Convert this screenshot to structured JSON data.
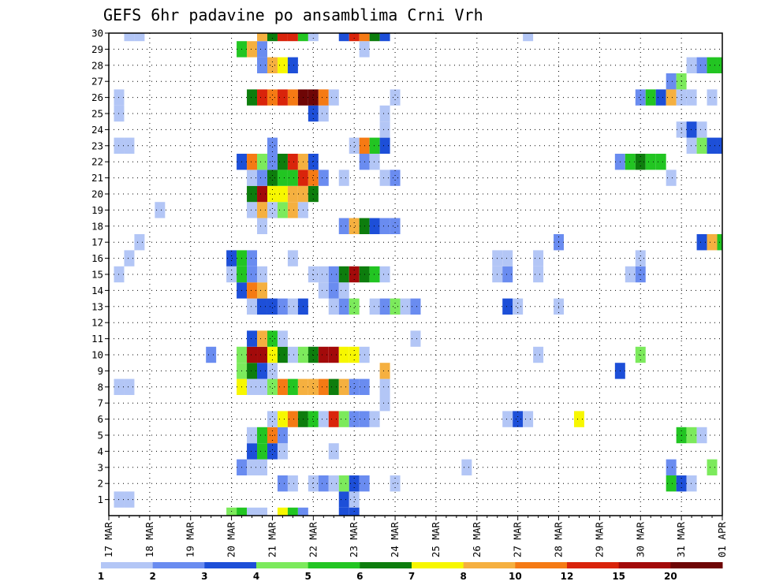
{
  "chart_data": {
    "type": "heatmap",
    "title": "GEFS 6hr padavine po ansamblima Crni Vrh",
    "xlabel": "",
    "ylabel": "",
    "x_tick_labels": [
      "17 MAR",
      "18 MAR",
      "19 MAR",
      "20 MAR",
      "21 MAR",
      "22 MAR",
      "23 MAR",
      "24 MAR",
      "25 MAR",
      "26 MAR",
      "27 MAR",
      "28 MAR",
      "29 MAR",
      "30 MAR",
      "31 MAR",
      "01 APR"
    ],
    "x_range_steps": [
      0,
      60
    ],
    "steps_per_day": 4,
    "y_tick_labels": [
      "1",
      "2",
      "3",
      "4",
      "5",
      "6",
      "7",
      "8",
      "9",
      "10",
      "11",
      "12",
      "13",
      "14",
      "15",
      "16",
      "17",
      "18",
      "19",
      "20",
      "21",
      "22",
      "23",
      "24",
      "25",
      "26",
      "27",
      "28",
      "29",
      "30"
    ],
    "y_range": [
      0,
      30
    ],
    "grid": "dotted",
    "colorbar": {
      "labels": [
        "1",
        "2",
        "3",
        "4",
        "5",
        "6",
        "7",
        "8",
        "10",
        "12",
        "15",
        "20"
      ],
      "colors": [
        "#b3c6f6",
        "#6a8cf0",
        "#1d4fd8",
        "#7cea5c",
        "#22c522",
        "#0d7d0d",
        "#f7f700",
        "#f5b040",
        "#f57a14",
        "#d9240b",
        "#a30a0a",
        "#6e0606"
      ]
    },
    "series_note": "each cell: member y (1-30), 6-hour step x from 17 MAR 00Z, color class c (1..12 = colorbar bins)",
    "cells": [
      {
        "x": 1,
        "y": 1,
        "c": 1
      },
      {
        "x": 2,
        "y": 1,
        "c": 1
      },
      {
        "x": 23,
        "y": 1,
        "c": 3
      },
      {
        "x": 24,
        "y": 1,
        "c": 1
      },
      {
        "x": 17,
        "y": 2,
        "c": 2
      },
      {
        "x": 18,
        "y": 2,
        "c": 1
      },
      {
        "x": 20,
        "y": 2,
        "c": 1
      },
      {
        "x": 21,
        "y": 2,
        "c": 2
      },
      {
        "x": 22,
        "y": 2,
        "c": 1
      },
      {
        "x": 23,
        "y": 2,
        "c": 4
      },
      {
        "x": 24,
        "y": 2,
        "c": 3
      },
      {
        "x": 25,
        "y": 2,
        "c": 2
      },
      {
        "x": 28,
        "y": 2,
        "c": 1
      },
      {
        "x": 55,
        "y": 2,
        "c": 5
      },
      {
        "x": 56,
        "y": 2,
        "c": 3
      },
      {
        "x": 57,
        "y": 2,
        "c": 1
      },
      {
        "x": 13,
        "y": 3,
        "c": 2
      },
      {
        "x": 14,
        "y": 3,
        "c": 1
      },
      {
        "x": 15,
        "y": 3,
        "c": 1
      },
      {
        "x": 35,
        "y": 3,
        "c": 1
      },
      {
        "x": 55,
        "y": 3,
        "c": 2
      },
      {
        "x": 59,
        "y": 3,
        "c": 4
      },
      {
        "x": 14,
        "y": 4,
        "c": 3
      },
      {
        "x": 15,
        "y": 4,
        "c": 5
      },
      {
        "x": 16,
        "y": 4,
        "c": 3
      },
      {
        "x": 17,
        "y": 4,
        "c": 1
      },
      {
        "x": 22,
        "y": 4,
        "c": 1
      },
      {
        "x": 14,
        "y": 5,
        "c": 1
      },
      {
        "x": 15,
        "y": 5,
        "c": 5
      },
      {
        "x": 16,
        "y": 5,
        "c": 9
      },
      {
        "x": 17,
        "y": 5,
        "c": 2
      },
      {
        "x": 56,
        "y": 5,
        "c": 5
      },
      {
        "x": 57,
        "y": 5,
        "c": 4
      },
      {
        "x": 58,
        "y": 5,
        "c": 1
      },
      {
        "x": 16,
        "y": 6,
        "c": 1
      },
      {
        "x": 17,
        "y": 6,
        "c": 7
      },
      {
        "x": 18,
        "y": 6,
        "c": 9
      },
      {
        "x": 19,
        "y": 6,
        "c": 6
      },
      {
        "x": 20,
        "y": 6,
        "c": 5
      },
      {
        "x": 21,
        "y": 6,
        "c": 1
      },
      {
        "x": 22,
        "y": 6,
        "c": 10
      },
      {
        "x": 23,
        "y": 6,
        "c": 4
      },
      {
        "x": 24,
        "y": 6,
        "c": 2
      },
      {
        "x": 25,
        "y": 6,
        "c": 2
      },
      {
        "x": 26,
        "y": 6,
        "c": 1
      },
      {
        "x": 39,
        "y": 6,
        "c": 1
      },
      {
        "x": 40,
        "y": 6,
        "c": 3
      },
      {
        "x": 41,
        "y": 6,
        "c": 1
      },
      {
        "x": 46,
        "y": 6,
        "c": 7
      },
      {
        "x": 27,
        "y": 7,
        "c": 1
      },
      {
        "x": 1,
        "y": 8,
        "c": 1
      },
      {
        "x": 2,
        "y": 8,
        "c": 1
      },
      {
        "x": 13,
        "y": 8,
        "c": 7
      },
      {
        "x": 14,
        "y": 8,
        "c": 1
      },
      {
        "x": 15,
        "y": 8,
        "c": 1
      },
      {
        "x": 16,
        "y": 8,
        "c": 4
      },
      {
        "x": 17,
        "y": 8,
        "c": 9
      },
      {
        "x": 18,
        "y": 8,
        "c": 5
      },
      {
        "x": 19,
        "y": 8,
        "c": 8
      },
      {
        "x": 20,
        "y": 8,
        "c": 8
      },
      {
        "x": 21,
        "y": 8,
        "c": 9
      },
      {
        "x": 22,
        "y": 8,
        "c": 6
      },
      {
        "x": 23,
        "y": 8,
        "c": 8
      },
      {
        "x": 24,
        "y": 8,
        "c": 2
      },
      {
        "x": 25,
        "y": 8,
        "c": 2
      },
      {
        "x": 27,
        "y": 8,
        "c": 1
      },
      {
        "x": 13,
        "y": 9,
        "c": 4
      },
      {
        "x": 14,
        "y": 9,
        "c": 6
      },
      {
        "x": 15,
        "y": 9,
        "c": 3
      },
      {
        "x": 16,
        "y": 9,
        "c": 1
      },
      {
        "x": 27,
        "y": 9,
        "c": 8
      },
      {
        "x": 50,
        "y": 9,
        "c": 3
      },
      {
        "x": 10,
        "y": 10,
        "c": 2
      },
      {
        "x": 13,
        "y": 10,
        "c": 4
      },
      {
        "x": 14,
        "y": 10,
        "c": 11
      },
      {
        "x": 15,
        "y": 10,
        "c": 11
      },
      {
        "x": 16,
        "y": 10,
        "c": 7
      },
      {
        "x": 17,
        "y": 10,
        "c": 6
      },
      {
        "x": 18,
        "y": 10,
        "c": 1
      },
      {
        "x": 19,
        "y": 10,
        "c": 4
      },
      {
        "x": 20,
        "y": 10,
        "c": 6
      },
      {
        "x": 21,
        "y": 10,
        "c": 11
      },
      {
        "x": 22,
        "y": 10,
        "c": 11
      },
      {
        "x": 23,
        "y": 10,
        "c": 7
      },
      {
        "x": 24,
        "y": 10,
        "c": 7
      },
      {
        "x": 25,
        "y": 10,
        "c": 1
      },
      {
        "x": 42,
        "y": 10,
        "c": 1
      },
      {
        "x": 52,
        "y": 10,
        "c": 4
      },
      {
        "x": 14,
        "y": 11,
        "c": 3
      },
      {
        "x": 15,
        "y": 11,
        "c": 8
      },
      {
        "x": 16,
        "y": 11,
        "c": 5
      },
      {
        "x": 17,
        "y": 11,
        "c": 1
      },
      {
        "x": 30,
        "y": 11,
        "c": 1
      },
      {
        "x": 14,
        "y": 13,
        "c": 1
      },
      {
        "x": 15,
        "y": 13,
        "c": 3
      },
      {
        "x": 16,
        "y": 13,
        "c": 3
      },
      {
        "x": 17,
        "y": 13,
        "c": 2
      },
      {
        "x": 18,
        "y": 13,
        "c": 1
      },
      {
        "x": 19,
        "y": 13,
        "c": 3
      },
      {
        "x": 22,
        "y": 13,
        "c": 1
      },
      {
        "x": 23,
        "y": 13,
        "c": 2
      },
      {
        "x": 24,
        "y": 13,
        "c": 4
      },
      {
        "x": 26,
        "y": 13,
        "c": 1
      },
      {
        "x": 27,
        "y": 13,
        "c": 2
      },
      {
        "x": 28,
        "y": 13,
        "c": 4
      },
      {
        "x": 29,
        "y": 13,
        "c": 1
      },
      {
        "x": 30,
        "y": 13,
        "c": 2
      },
      {
        "x": 39,
        "y": 13,
        "c": 3
      },
      {
        "x": 40,
        "y": 13,
        "c": 1
      },
      {
        "x": 44,
        "y": 13,
        "c": 1
      },
      {
        "x": 13,
        "y": 14,
        "c": 3
      },
      {
        "x": 14,
        "y": 14,
        "c": 9
      },
      {
        "x": 15,
        "y": 14,
        "c": 8
      },
      {
        "x": 21,
        "y": 14,
        "c": 1
      },
      {
        "x": 22,
        "y": 14,
        "c": 2
      },
      {
        "x": 23,
        "y": 14,
        "c": 1
      },
      {
        "x": 1,
        "y": 15,
        "c": 1
      },
      {
        "x": 12,
        "y": 15,
        "c": 1
      },
      {
        "x": 13,
        "y": 15,
        "c": 5
      },
      {
        "x": 14,
        "y": 15,
        "c": 2
      },
      {
        "x": 15,
        "y": 15,
        "c": 1
      },
      {
        "x": 20,
        "y": 15,
        "c": 1
      },
      {
        "x": 21,
        "y": 15,
        "c": 1
      },
      {
        "x": 22,
        "y": 15,
        "c": 2
      },
      {
        "x": 23,
        "y": 15,
        "c": 6
      },
      {
        "x": 24,
        "y": 15,
        "c": 11
      },
      {
        "x": 25,
        "y": 15,
        "c": 6
      },
      {
        "x": 26,
        "y": 15,
        "c": 5
      },
      {
        "x": 27,
        "y": 15,
        "c": 1
      },
      {
        "x": 38,
        "y": 15,
        "c": 1
      },
      {
        "x": 39,
        "y": 15,
        "c": 2
      },
      {
        "x": 42,
        "y": 15,
        "c": 1
      },
      {
        "x": 51,
        "y": 15,
        "c": 1
      },
      {
        "x": 52,
        "y": 15,
        "c": 2
      },
      {
        "x": 2,
        "y": 16,
        "c": 1
      },
      {
        "x": 12,
        "y": 16,
        "c": 3
      },
      {
        "x": 13,
        "y": 16,
        "c": 5
      },
      {
        "x": 14,
        "y": 16,
        "c": 2
      },
      {
        "x": 18,
        "y": 16,
        "c": 1
      },
      {
        "x": 38,
        "y": 16,
        "c": 1
      },
      {
        "x": 39,
        "y": 16,
        "c": 1
      },
      {
        "x": 42,
        "y": 16,
        "c": 1
      },
      {
        "x": 52,
        "y": 16,
        "c": 1
      },
      {
        "x": 3,
        "y": 17,
        "c": 1
      },
      {
        "x": 44,
        "y": 17,
        "c": 2
      },
      {
        "x": 58,
        "y": 17,
        "c": 3
      },
      {
        "x": 59,
        "y": 17,
        "c": 8
      },
      {
        "x": 60,
        "y": 17,
        "c": 5
      },
      {
        "x": 15,
        "y": 18,
        "c": 1
      },
      {
        "x": 23,
        "y": 18,
        "c": 2
      },
      {
        "x": 24,
        "y": 18,
        "c": 8
      },
      {
        "x": 25,
        "y": 18,
        "c": 6
      },
      {
        "x": 26,
        "y": 18,
        "c": 3
      },
      {
        "x": 27,
        "y": 18,
        "c": 2
      },
      {
        "x": 28,
        "y": 18,
        "c": 2
      },
      {
        "x": 5,
        "y": 19,
        "c": 1
      },
      {
        "x": 14,
        "y": 19,
        "c": 1
      },
      {
        "x": 15,
        "y": 19,
        "c": 8
      },
      {
        "x": 16,
        "y": 19,
        "c": 1
      },
      {
        "x": 17,
        "y": 19,
        "c": 4
      },
      {
        "x": 18,
        "y": 19,
        "c": 8
      },
      {
        "x": 19,
        "y": 19,
        "c": 1
      },
      {
        "x": 14,
        "y": 20,
        "c": 6
      },
      {
        "x": 15,
        "y": 20,
        "c": 11
      },
      {
        "x": 16,
        "y": 20,
        "c": 7
      },
      {
        "x": 17,
        "y": 20,
        "c": 7
      },
      {
        "x": 18,
        "y": 20,
        "c": 8
      },
      {
        "x": 19,
        "y": 20,
        "c": 8
      },
      {
        "x": 20,
        "y": 20,
        "c": 6
      },
      {
        "x": 14,
        "y": 21,
        "c": 1
      },
      {
        "x": 15,
        "y": 21,
        "c": 2
      },
      {
        "x": 16,
        "y": 21,
        "c": 6
      },
      {
        "x": 17,
        "y": 21,
        "c": 5
      },
      {
        "x": 18,
        "y": 21,
        "c": 5
      },
      {
        "x": 19,
        "y": 21,
        "c": 10
      },
      {
        "x": 20,
        "y": 21,
        "c": 9
      },
      {
        "x": 21,
        "y": 21,
        "c": 2
      },
      {
        "x": 23,
        "y": 21,
        "c": 1
      },
      {
        "x": 27,
        "y": 21,
        "c": 1
      },
      {
        "x": 28,
        "y": 21,
        "c": 2
      },
      {
        "x": 55,
        "y": 21,
        "c": 1
      },
      {
        "x": 13,
        "y": 22,
        "c": 3
      },
      {
        "x": 14,
        "y": 22,
        "c": 9
      },
      {
        "x": 15,
        "y": 22,
        "c": 4
      },
      {
        "x": 16,
        "y": 22,
        "c": 2
      },
      {
        "x": 17,
        "y": 22,
        "c": 6
      },
      {
        "x": 18,
        "y": 22,
        "c": 10
      },
      {
        "x": 19,
        "y": 22,
        "c": 8
      },
      {
        "x": 20,
        "y": 22,
        "c": 3
      },
      {
        "x": 25,
        "y": 22,
        "c": 2
      },
      {
        "x": 26,
        "y": 22,
        "c": 1
      },
      {
        "x": 50,
        "y": 22,
        "c": 2
      },
      {
        "x": 51,
        "y": 22,
        "c": 5
      },
      {
        "x": 52,
        "y": 22,
        "c": 6
      },
      {
        "x": 53,
        "y": 22,
        "c": 5
      },
      {
        "x": 54,
        "y": 22,
        "c": 5
      },
      {
        "x": 1,
        "y": 23,
        "c": 1
      },
      {
        "x": 2,
        "y": 23,
        "c": 1
      },
      {
        "x": 16,
        "y": 23,
        "c": 2
      },
      {
        "x": 24,
        "y": 23,
        "c": 1
      },
      {
        "x": 25,
        "y": 23,
        "c": 9
      },
      {
        "x": 26,
        "y": 23,
        "c": 5
      },
      {
        "x": 27,
        "y": 23,
        "c": 3
      },
      {
        "x": 57,
        "y": 23,
        "c": 1
      },
      {
        "x": 58,
        "y": 23,
        "c": 4
      },
      {
        "x": 59,
        "y": 23,
        "c": 3
      },
      {
        "x": 60,
        "y": 23,
        "c": 3
      },
      {
        "x": 56,
        "y": 24,
        "c": 1
      },
      {
        "x": 57,
        "y": 24,
        "c": 3
      },
      {
        "x": 58,
        "y": 24,
        "c": 1
      },
      {
        "x": 27,
        "y": 24,
        "c": 1
      },
      {
        "x": 1,
        "y": 25,
        "c": 1
      },
      {
        "x": 20,
        "y": 25,
        "c": 3
      },
      {
        "x": 21,
        "y": 25,
        "c": 1
      },
      {
        "x": 27,
        "y": 25,
        "c": 1
      },
      {
        "x": 1,
        "y": 26,
        "c": 1
      },
      {
        "x": 14,
        "y": 26,
        "c": 6
      },
      {
        "x": 15,
        "y": 26,
        "c": 10
      },
      {
        "x": 16,
        "y": 26,
        "c": 9
      },
      {
        "x": 17,
        "y": 26,
        "c": 10
      },
      {
        "x": 18,
        "y": 26,
        "c": 9
      },
      {
        "x": 19,
        "y": 26,
        "c": 12
      },
      {
        "x": 20,
        "y": 26,
        "c": 12
      },
      {
        "x": 21,
        "y": 26,
        "c": 9
      },
      {
        "x": 22,
        "y": 26,
        "c": 1
      },
      {
        "x": 28,
        "y": 26,
        "c": 1
      },
      {
        "x": 52,
        "y": 26,
        "c": 2
      },
      {
        "x": 53,
        "y": 26,
        "c": 5
      },
      {
        "x": 54,
        "y": 26,
        "c": 3
      },
      {
        "x": 55,
        "y": 26,
        "c": 8
      },
      {
        "x": 56,
        "y": 26,
        "c": 1
      },
      {
        "x": 57,
        "y": 26,
        "c": 1
      },
      {
        "x": 59,
        "y": 26,
        "c": 1
      },
      {
        "x": 55,
        "y": 27,
        "c": 2
      },
      {
        "x": 56,
        "y": 27,
        "c": 4
      },
      {
        "x": 15,
        "y": 28,
        "c": 2
      },
      {
        "x": 16,
        "y": 28,
        "c": 8
      },
      {
        "x": 17,
        "y": 28,
        "c": 7
      },
      {
        "x": 18,
        "y": 28,
        "c": 3
      },
      {
        "x": 57,
        "y": 28,
        "c": 1
      },
      {
        "x": 58,
        "y": 28,
        "c": 2
      },
      {
        "x": 59,
        "y": 28,
        "c": 5
      },
      {
        "x": 60,
        "y": 28,
        "c": 5
      },
      {
        "x": 13,
        "y": 29,
        "c": 5
      },
      {
        "x": 14,
        "y": 29,
        "c": 8
      },
      {
        "x": 15,
        "y": 29,
        "c": 2
      },
      {
        "x": 25,
        "y": 29,
        "c": 1
      },
      {
        "x": 2,
        "y": 30,
        "c": 1
      },
      {
        "x": 3,
        "y": 30,
        "c": 1
      },
      {
        "x": 15,
        "y": 30,
        "c": 8
      },
      {
        "x": 16,
        "y": 30,
        "c": 6
      },
      {
        "x": 17,
        "y": 30,
        "c": 10
      },
      {
        "x": 18,
        "y": 30,
        "c": 10
      },
      {
        "x": 19,
        "y": 30,
        "c": 5
      },
      {
        "x": 20,
        "y": 30,
        "c": 1
      },
      {
        "x": 23,
        "y": 30,
        "c": 3
      },
      {
        "x": 24,
        "y": 30,
        "c": 10
      },
      {
        "x": 25,
        "y": 30,
        "c": 9
      },
      {
        "x": 26,
        "y": 30,
        "c": 6
      },
      {
        "x": 27,
        "y": 30,
        "c": 3
      },
      {
        "x": 41,
        "y": 30,
        "c": 1
      },
      {
        "x": 12,
        "y": 0,
        "c": 4
      },
      {
        "x": 13,
        "y": 0,
        "c": 5
      },
      {
        "x": 14,
        "y": 0,
        "c": 1
      },
      {
        "x": 15,
        "y": 0,
        "c": 1
      },
      {
        "x": 17,
        "y": 0,
        "c": 7
      },
      {
        "x": 18,
        "y": 0,
        "c": 5
      },
      {
        "x": 19,
        "y": 0,
        "c": 2
      },
      {
        "x": 23,
        "y": 0,
        "c": 3
      },
      {
        "x": 24,
        "y": 0,
        "c": 3
      }
    ]
  }
}
